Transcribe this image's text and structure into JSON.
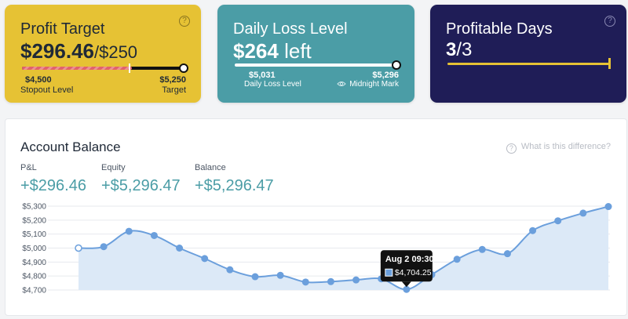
{
  "cards": {
    "profit": {
      "title": "Profit Target",
      "value": "$296.46",
      "target": "/$250",
      "left_value": "$4,500",
      "left_label": "Stopout Level",
      "right_value": "$5,250",
      "right_label": "Target",
      "help": "?",
      "progress": 1.0,
      "colors": {
        "bg": "#e6c234",
        "bar_fill": "#e0626b",
        "bar_track": "#111111"
      }
    },
    "loss": {
      "title": "Daily Loss Level",
      "value": "$264",
      "suffix": "left",
      "left_value": "$5,031",
      "left_label": "Daily Loss Level",
      "right_value": "$5,296",
      "right_label": "Midnight Mark",
      "eye_icon": "eye-icon",
      "progress": 1.0,
      "colors": {
        "bg": "#4b9da6"
      }
    },
    "days": {
      "title": "Profitable Days",
      "value_bold": "3",
      "value_rest": "/3",
      "help": "?",
      "progress": 1.0,
      "colors": {
        "bg": "#1f1d57",
        "bar": "#e6c234"
      }
    }
  },
  "balance": {
    "title": "Account Balance",
    "diff_link": "What is this difference?",
    "help": "?",
    "metrics": [
      {
        "label": "P&L",
        "value": "+$296.46"
      },
      {
        "label": "Equity",
        "value": "+$5,296.47"
      },
      {
        "label": "Balance",
        "value": "+$5,296.47"
      }
    ]
  },
  "chart_data": {
    "type": "area",
    "title": "",
    "xlabel": "",
    "ylabel": "",
    "ylim": [
      4700,
      5300
    ],
    "yticks": [
      "$5,300",
      "$5,200",
      "$5,100",
      "$5,000",
      "$4,900",
      "$4,800",
      "$4,700"
    ],
    "ytick_values": [
      5300,
      5200,
      5100,
      5000,
      4900,
      4800,
      4700
    ],
    "grid": true,
    "values": [
      5000,
      5010,
      5120,
      5090,
      5000,
      4925,
      4845,
      4795,
      4805,
      4757,
      4760,
      4772,
      4780,
      4704.25,
      4810,
      4920,
      4990,
      4960,
      5125,
      5195,
      5250,
      5297
    ],
    "colors": {
      "line": "#6b9fdc",
      "fill": "#dce9f7"
    },
    "tooltip": {
      "title": "Aug 2 09:30",
      "value": "$4,704.25",
      "point_index": 13
    }
  }
}
